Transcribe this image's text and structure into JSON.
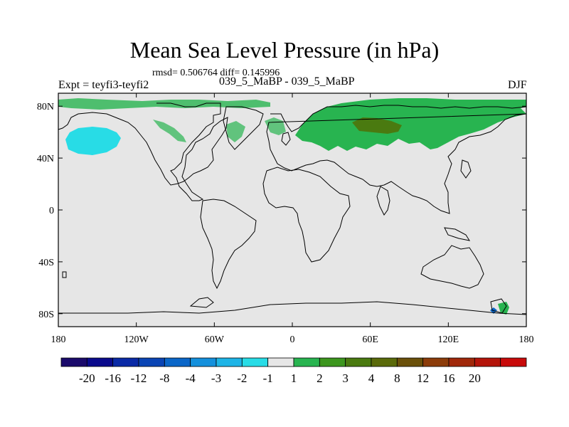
{
  "title": "Mean Sea Level Pressure (in hPa)",
  "stats": "rmsd= 0.506764 diff= 0.145996",
  "experiment": "Expt = teyfi3-teyfi2",
  "subtitle": "039_5_MaBP - 039_5_MaBP",
  "season": "DJF",
  "map": {
    "lon_range": [
      -180,
      180
    ],
    "lat_range": [
      -90,
      90
    ],
    "background_color": "#e6e6e6",
    "lat_ticks": [
      "80N",
      "40N",
      "0",
      "40S",
      "80S"
    ],
    "lat_tick_values": [
      80,
      40,
      0,
      -40,
      -80
    ],
    "lon_ticks": [
      "180",
      "120W",
      "60W",
      "0",
      "60E",
      "120E",
      "180"
    ],
    "lon_tick_values": [
      -180,
      -120,
      -60,
      0,
      60,
      120,
      180
    ]
  },
  "colorbar": {
    "colors": [
      "#1a0a6b",
      "#0a0a8c",
      "#0a2aa6",
      "#0a44b4",
      "#0a66c8",
      "#1490dc",
      "#1eb4e6",
      "#28dce6",
      "#e6e6e6",
      "#28b450",
      "#3c961e",
      "#4a7a10",
      "#5a6a0a",
      "#6a500a",
      "#8c3c0a",
      "#a0280a",
      "#b4140a",
      "#c80a0a"
    ],
    "labels": [
      "-20",
      "-16",
      "-12",
      "-8",
      "-4",
      "-3",
      "-2",
      "-1",
      "1",
      "2",
      "3",
      "4",
      "8",
      "12",
      "16",
      "20"
    ],
    "label_boundaries": [
      1,
      2,
      3,
      4,
      5,
      6,
      7,
      8,
      9,
      10,
      11,
      12,
      13,
      14,
      15,
      16
    ]
  },
  "fields": {
    "positive_color": "#28b450",
    "positive_dark": "#4a7a10",
    "negative_color": "#28dce6"
  }
}
